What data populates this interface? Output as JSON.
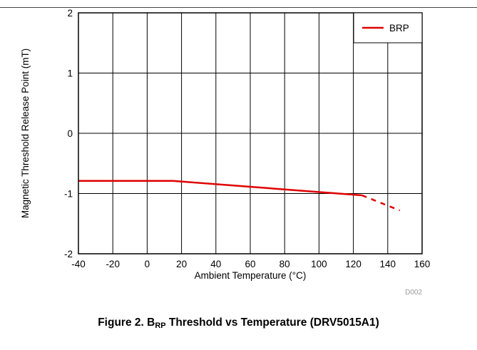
{
  "chart_data": {
    "type": "line",
    "title": "",
    "xlabel": "Ambient Temperature (°C)",
    "ylabel": "Magnetic Threshold Release Point (mT)",
    "xlim": [
      -40,
      160
    ],
    "ylim": [
      -2,
      2
    ],
    "x_ticks": [
      "-40",
      "-20",
      "0",
      "20",
      "40",
      "60",
      "80",
      "100",
      "120",
      "140",
      "160"
    ],
    "y_ticks": [
      "-2",
      "-1",
      "0",
      "1",
      "2"
    ],
    "grid": true,
    "legend_position": "top-right",
    "source_id": "D002",
    "series": [
      {
        "name": "BRP",
        "color": "#e00000",
        "style": "solid",
        "x": [
          -40,
          15,
          125
        ],
        "y": [
          -0.79,
          -0.79,
          -1.03
        ]
      },
      {
        "name": "BRP",
        "color": "#e00000",
        "style": "dashed",
        "x": [
          125,
          147
        ],
        "y": [
          -1.03,
          -1.28
        ]
      }
    ]
  },
  "caption": {
    "prefix": "Figure 2. B",
    "subscript": "RP",
    "suffix": " Threshold vs Temperature (DRV5015A1)"
  }
}
